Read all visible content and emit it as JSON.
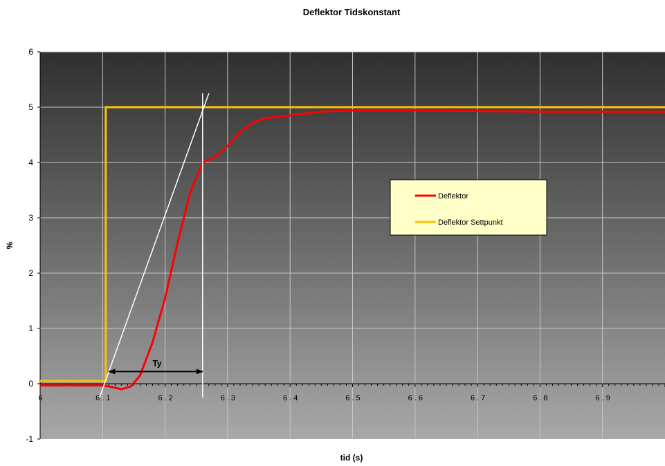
{
  "chart_data": {
    "type": "line",
    "title": "Deflektor Tidskonstant",
    "xlabel": "tid (s)",
    "ylabel": "%",
    "xlim": [
      6.0,
      7.0
    ],
    "ylim": [
      -1,
      6
    ],
    "x_ticks": [
      "6",
      "6.1",
      "6.2",
      "6.3",
      "6.4",
      "6.5",
      "6.6",
      "6.7",
      "6.8",
      "6.9"
    ],
    "y_ticks": [
      "-1",
      "0",
      "1",
      "2",
      "3",
      "4",
      "5",
      "6"
    ],
    "grid": true,
    "legend_position": "center-right",
    "series": [
      {
        "name": "Deflektor",
        "color": "#ff0000",
        "points": [
          [
            6.0,
            -0.03
          ],
          [
            6.05,
            -0.03
          ],
          [
            6.1,
            -0.03
          ],
          [
            6.115,
            -0.06
          ],
          [
            6.13,
            -0.1
          ],
          [
            6.145,
            -0.05
          ],
          [
            6.16,
            0.15
          ],
          [
            6.18,
            0.75
          ],
          [
            6.2,
            1.55
          ],
          [
            6.22,
            2.55
          ],
          [
            6.24,
            3.45
          ],
          [
            6.26,
            4.0
          ],
          [
            6.28,
            4.1
          ],
          [
            6.3,
            4.3
          ],
          [
            6.32,
            4.55
          ],
          [
            6.34,
            4.72
          ],
          [
            6.36,
            4.8
          ],
          [
            6.4,
            4.85
          ],
          [
            6.45,
            4.92
          ],
          [
            6.5,
            4.94
          ],
          [
            6.55,
            4.94
          ],
          [
            6.6,
            4.94
          ],
          [
            6.7,
            4.93
          ],
          [
            6.8,
            4.92
          ],
          [
            6.9,
            4.92
          ],
          [
            7.0,
            4.92
          ]
        ]
      },
      {
        "name": "Deflektor Settpunkt",
        "color": "#ffc000",
        "points": [
          [
            6.0,
            0.05
          ],
          [
            6.105,
            0.05
          ],
          [
            6.105,
            5.0
          ],
          [
            7.0,
            5.0
          ]
        ]
      }
    ],
    "annotations": [
      {
        "type": "tangent-line",
        "color": "#ffffff",
        "points": [
          [
            6.095,
            -0.25
          ],
          [
            6.27,
            5.25
          ]
        ]
      },
      {
        "type": "vertical-line",
        "color": "#ffffff",
        "points": [
          [
            6.26,
            -0.25
          ],
          [
            6.26,
            5.25
          ]
        ]
      },
      {
        "type": "double-arrow",
        "label": "Ty",
        "color": "#000000",
        "from": [
          6.11,
          0.22
        ],
        "to": [
          6.26,
          0.22
        ]
      }
    ]
  }
}
